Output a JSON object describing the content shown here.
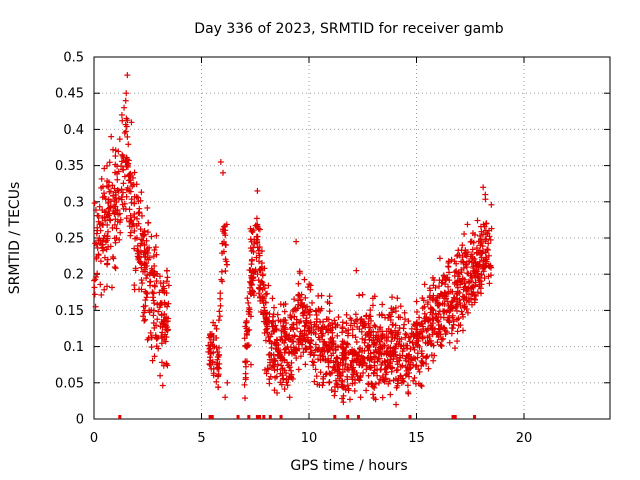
{
  "chart_data": {
    "type": "scatter",
    "title": "Day 336 of 2023, SRMTID for receiver gamb",
    "xlabel": "GPS time / hours",
    "ylabel": "SRMTID / TECUs",
    "xlim": [
      0,
      24
    ],
    "ylim": [
      0,
      0.5
    ],
    "grid": true,
    "marker": "+",
    "series_color": "#e00000",
    "x_ticks": [
      0,
      5,
      10,
      15,
      20
    ],
    "x_tick_labels": [
      "0",
      "5",
      "10",
      "15",
      "20"
    ],
    "y_ticks": [
      0,
      0.05,
      0.1,
      0.15,
      0.2,
      0.25,
      0.3,
      0.35,
      0.4,
      0.45,
      0.5
    ],
    "y_tick_labels": [
      "0",
      "0.05",
      "0.1",
      "0.15",
      "0.2",
      "0.25",
      "0.3",
      "0.35",
      "0.4",
      "0.45",
      "0.5"
    ],
    "series": [
      {
        "name": "SRMTID",
        "trend": [
          [
            0.0,
            0.23
          ],
          [
            0.3,
            0.26
          ],
          [
            0.6,
            0.27
          ],
          [
            0.9,
            0.28
          ],
          [
            1.2,
            0.31
          ],
          [
            1.5,
            0.37
          ],
          [
            1.8,
            0.3
          ],
          [
            2.1,
            0.24
          ],
          [
            2.4,
            0.21
          ],
          [
            2.7,
            0.18
          ],
          [
            3.0,
            0.15
          ],
          [
            3.3,
            0.13
          ],
          [
            5.5,
            0.09
          ],
          [
            5.8,
            0.08
          ],
          [
            6.0,
            0.27
          ],
          [
            7.0,
            0.07
          ],
          [
            7.3,
            0.2
          ],
          [
            7.6,
            0.24
          ],
          [
            8.0,
            0.12
          ],
          [
            8.5,
            0.1
          ],
          [
            9.0,
            0.09
          ],
          [
            9.3,
            0.11
          ],
          [
            9.5,
            0.14
          ],
          [
            10.0,
            0.12
          ],
          [
            10.5,
            0.11
          ],
          [
            11.0,
            0.09
          ],
          [
            11.5,
            0.08
          ],
          [
            12.0,
            0.08
          ],
          [
            12.5,
            0.1
          ],
          [
            13.0,
            0.09
          ],
          [
            13.5,
            0.1
          ],
          [
            14.0,
            0.1
          ],
          [
            14.5,
            0.08
          ],
          [
            15.0,
            0.1
          ],
          [
            15.5,
            0.12
          ],
          [
            16.0,
            0.15
          ],
          [
            16.5,
            0.17
          ],
          [
            17.0,
            0.18
          ],
          [
            17.5,
            0.2
          ],
          [
            18.0,
            0.22
          ],
          [
            18.4,
            0.24
          ]
        ],
        "clusters": [
          {
            "x0": 0.0,
            "x1": 3.5,
            "spread": 0.04,
            "n": 430
          },
          {
            "x0": 5.3,
            "x1": 6.2,
            "spread": 0.02,
            "n": 80
          },
          {
            "x0": 7.0,
            "x1": 18.5,
            "spread": 0.03,
            "n": 1500
          }
        ],
        "highlights": [
          [
            1.55,
            0.475
          ],
          [
            1.5,
            0.45
          ],
          [
            1.4,
            0.43
          ],
          [
            1.3,
            0.42
          ],
          [
            0.8,
            0.39
          ],
          [
            5.9,
            0.355
          ],
          [
            6.0,
            0.34
          ],
          [
            7.6,
            0.315
          ],
          [
            18.1,
            0.32
          ],
          [
            18.2,
            0.31
          ],
          [
            9.4,
            0.245
          ],
          [
            12.2,
            0.205
          ],
          [
            5.6,
            0.1
          ],
          [
            6.2,
            0.05
          ],
          [
            6.1,
            0.03
          ],
          [
            7.3,
            0.075
          ],
          [
            9.1,
            0.03
          ],
          [
            12.4,
            0.03
          ]
        ],
        "zero_markers_x": [
          1.2,
          5.4,
          5.5,
          6.7,
          7.2,
          7.6,
          7.7,
          7.9,
          8.2,
          8.7,
          11.2,
          11.8,
          12.3,
          14.7,
          16.7,
          16.8,
          17.7
        ]
      }
    ]
  }
}
